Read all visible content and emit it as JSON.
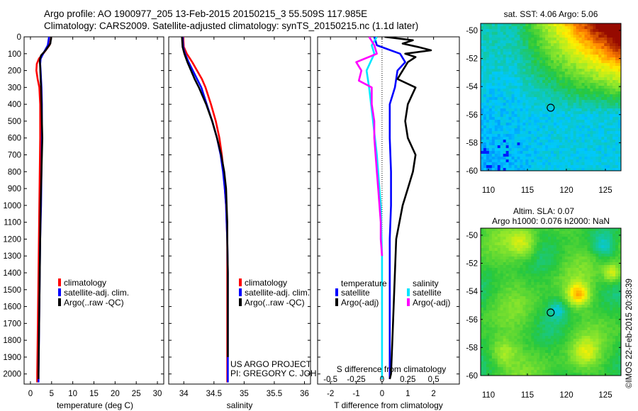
{
  "header": {
    "line1": "Argo profile: AO 1900977_205 13-Feb-2015 20150215_3 55.509S 117.985E",
    "line2": "Climatology: CARS2009. Satellite-adjusted climatology: synTS_20150215.nc (1.1d later)"
  },
  "colors": {
    "climatology": "#ff0000",
    "satellite": "#0000ff",
    "argo": "#000000",
    "sal_satellite": "#00e5ff",
    "sal_argo": "#ff00ff"
  },
  "credit": {
    "project": "US ARGO PROJECT",
    "pi": "PI: GREGORY C. JOHNSON"
  },
  "watermark": "©IMOS 22-Feb-2015 20:38:39",
  "chart_data": [
    {
      "id": "temperature",
      "type": "line",
      "xlabel": "temperature (deg C)",
      "ylabel": "",
      "xlim": [
        -1.5,
        31.5
      ],
      "ylim": [
        2060,
        0
      ],
      "x_ticks": [
        0,
        5,
        10,
        15,
        20,
        25,
        30
      ],
      "x_tick_labels": [
        "0",
        "5",
        "10",
        "15",
        "20",
        "25",
        "30"
      ],
      "y_ticks": [
        0,
        100,
        200,
        300,
        400,
        500,
        600,
        700,
        800,
        900,
        1000,
        1100,
        1200,
        1300,
        1400,
        1500,
        1600,
        1700,
        1800,
        1900,
        2000
      ],
      "legend": [
        "climatology",
        "satellite-adj. clim.",
        "Argo(..raw -QC)"
      ],
      "series": [
        {
          "name": "climatology",
          "color": "#ff0000",
          "depth": [
            0,
            50,
            100,
            130,
            160,
            200,
            250,
            300,
            400,
            600,
            800,
            1000,
            1200,
            1400,
            1600,
            1800,
            2000,
            2050
          ],
          "values": [
            4.9,
            4.5,
            3.0,
            2.0,
            1.5,
            1.4,
            1.7,
            2.1,
            2.3,
            2.3,
            2.2,
            2.1,
            2.0,
            1.9,
            1.8,
            1.7,
            1.6,
            1.6
          ]
        },
        {
          "name": "satellite-adj. clim.",
          "color": "#0000ff",
          "depth": [
            0,
            50,
            100,
            130,
            160,
            200,
            300,
            400,
            600,
            800,
            1000,
            1200,
            1400,
            1600,
            1800,
            2000,
            2050
          ],
          "values": [
            4.4,
            4.1,
            3.0,
            2.4,
            2.3,
            2.4,
            2.6,
            2.7,
            2.7,
            2.6,
            2.5,
            2.3,
            2.2,
            2.1,
            2.0,
            1.9,
            1.9
          ]
        },
        {
          "name": "Argo(..raw -QC)",
          "color": "#000000",
          "depth": [
            0,
            40,
            80,
            110,
            140,
            180,
            250,
            300,
            400,
            500,
            600,
            700,
            800,
            900,
            1000,
            1200,
            1400,
            1600,
            1800,
            2000,
            2030
          ],
          "values": [
            4.9,
            4.7,
            3.6,
            2.5,
            2.2,
            2.3,
            2.4,
            2.5,
            2.6,
            2.7,
            2.8,
            2.7,
            2.6,
            2.5,
            2.4,
            2.3,
            2.2,
            2.1,
            2.0,
            1.9,
            1.9
          ]
        }
      ]
    },
    {
      "id": "salinity",
      "type": "line",
      "xlabel": "salinity",
      "ylabel": "",
      "xlim": [
        33.75,
        36.1
      ],
      "ylim": [
        2060,
        0
      ],
      "x_ticks": [
        34,
        34.5,
        35,
        35.5,
        36
      ],
      "x_tick_labels": [
        "34",
        "34.5",
        "35",
        "35.5",
        "36"
      ],
      "legend": [
        "climatology",
        "satellite-adj. clim.",
        "Argo(..raw -QC)"
      ],
      "series": [
        {
          "name": "climatology",
          "color": "#ff0000",
          "depth": [
            0,
            60,
            100,
            150,
            200,
            250,
            300,
            400,
            500,
            600,
            700,
            800,
            900,
            1000,
            1100,
            1200,
            1400,
            1600,
            1800,
            2000,
            2050
          ],
          "values": [
            33.99,
            34.0,
            34.05,
            34.14,
            34.22,
            34.3,
            34.36,
            34.45,
            34.53,
            34.59,
            34.63,
            34.66,
            34.68,
            34.7,
            34.71,
            34.72,
            34.72,
            34.72,
            34.72,
            34.72,
            34.72
          ]
        },
        {
          "name": "satellite-adj. clim.",
          "color": "#0000ff",
          "depth": [
            0,
            60,
            100,
            150,
            200,
            250,
            300,
            400,
            500,
            600,
            700,
            800,
            900,
            1000,
            1100,
            1200,
            1400,
            1600,
            1800,
            2000,
            2050
          ],
          "values": [
            33.98,
            33.99,
            34.02,
            34.08,
            34.15,
            34.22,
            34.29,
            34.38,
            34.47,
            34.55,
            34.61,
            34.65,
            34.68,
            34.7,
            34.71,
            34.72,
            34.73,
            34.73,
            34.73,
            34.73,
            34.73
          ]
        },
        {
          "name": "Argo(..raw -QC)",
          "color": "#000000",
          "depth": [
            0,
            60,
            100,
            150,
            200,
            250,
            300,
            400,
            500,
            600,
            700,
            800,
            900,
            1000,
            1100,
            1200,
            1400,
            1600,
            1800,
            1900
          ],
          "values": [
            33.97,
            33.98,
            34.01,
            34.06,
            34.12,
            34.18,
            34.25,
            34.37,
            34.47,
            34.55,
            34.62,
            34.67,
            34.7,
            34.71,
            34.72,
            34.72,
            34.73,
            34.73,
            34.73,
            34.73
          ]
        }
      ]
    },
    {
      "id": "difference",
      "type": "line",
      "xlabel": "T difference from climatology",
      "xlabel_top": "S difference from climatology",
      "xlim": [
        -2.5,
        3.0
      ],
      "ylim": [
        2060,
        0
      ],
      "x_ticks": [
        -2,
        -1,
        0,
        1,
        2
      ],
      "x_tick_labels": [
        "-2",
        "-1",
        "0",
        "1",
        "2"
      ],
      "s_tick_labels": [
        "-0.5",
        "-0.25",
        "0",
        "0.25",
        "0.5"
      ],
      "legend_headers": [
        "temperature",
        "salinity"
      ],
      "legend": [
        "satellite",
        "Argo(-adj)",
        "satellite",
        "Argo(-adj)"
      ],
      "series": [
        {
          "name": "T satellite",
          "color": "#0000ff",
          "depth": [
            0,
            50,
            100,
            150,
            200,
            300,
            400,
            600,
            800,
            1000,
            1200,
            1400,
            1600,
            1800,
            2000,
            2030
          ],
          "values": [
            -0.3,
            -0.2,
            0.7,
            0.9,
            0.6,
            0.5,
            0.3,
            0.3,
            0.35,
            0.35,
            0.3,
            0.3,
            0.3,
            0.3,
            0.3,
            0.3
          ]
        },
        {
          "name": "T Argo(-adj)",
          "color": "#000000",
          "depth": [
            0,
            20,
            40,
            60,
            80,
            100,
            120,
            150,
            200,
            250,
            300,
            400,
            500,
            600,
            700,
            800,
            900,
            1000,
            1200,
            1400,
            1600,
            1800,
            2000,
            2030
          ],
          "values": [
            0.1,
            1.2,
            0.8,
            1.4,
            1.9,
            0.9,
            1.3,
            1.0,
            0.8,
            0.6,
            1.3,
            1.0,
            0.9,
            1.0,
            1.3,
            1.2,
            1.0,
            0.8,
            0.55,
            0.5,
            0.45,
            0.4,
            0.35,
            0.3
          ]
        },
        {
          "name": "S satellite",
          "color": "#00e5ff",
          "depth": [
            0,
            50,
            100,
            200,
            300,
            500,
            700,
            1000,
            1300,
            1600,
            2000,
            2030
          ],
          "values": [
            -0.2,
            -0.4,
            -0.3,
            -0.6,
            -0.5,
            -0.35,
            -0.2,
            -0.05,
            0.0,
            0.0,
            0.0,
            0.0
          ]
        },
        {
          "name": "S Argo(-adj)",
          "color": "#ff00ff",
          "depth": [
            0,
            50,
            100,
            150,
            200,
            260,
            300,
            400,
            500,
            600,
            700,
            800,
            900,
            1000,
            1100,
            1200,
            1300
          ],
          "values": [
            -0.5,
            -0.3,
            -0.2,
            -1.0,
            -0.8,
            -0.9,
            -0.4,
            -0.4,
            -0.3,
            -0.3,
            -0.25,
            -0.2,
            -0.15,
            -0.1,
            -0.05,
            -0.05,
            0.0
          ]
        }
      ]
    },
    {
      "id": "sst_map",
      "type": "heatmap",
      "title": "sat. SST: 4.06 Argo: 5.06",
      "xlim": [
        109,
        127
      ],
      "ylim": [
        -60,
        -49.5
      ],
      "x_ticks": [
        110,
        115,
        120,
        125
      ],
      "y_ticks": [
        -50,
        -52,
        -54,
        -56,
        -58,
        -60
      ],
      "marker": {
        "lon": 117.985,
        "lat": -55.509
      }
    },
    {
      "id": "sla_map",
      "type": "heatmap",
      "title": "Altim. SLA: 0.07",
      "subtitle": "Argo h1000: 0.076 h2000: NaN",
      "xlim": [
        109,
        127
      ],
      "ylim": [
        -60,
        -49.5
      ],
      "x_ticks": [
        110,
        115,
        120,
        125
      ],
      "y_ticks": [
        -50,
        -52,
        -54,
        -56,
        -58,
        -60
      ],
      "marker": {
        "lon": 117.985,
        "lat": -55.509
      }
    }
  ]
}
